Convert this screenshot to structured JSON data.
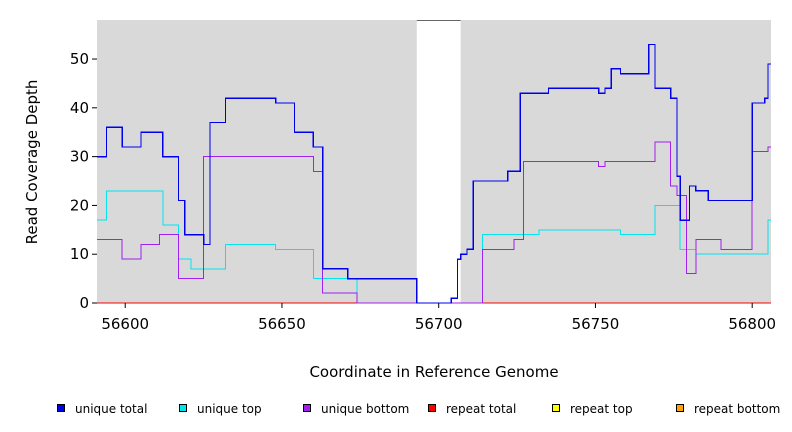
{
  "chart_data": {
    "type": "line",
    "step": true,
    "title": "",
    "xlabel": "Coordinate in Reference Genome",
    "ylabel": "Read Coverage Depth",
    "xlim": [
      56591,
      56806
    ],
    "ylim": [
      0,
      58
    ],
    "x_ticks": [
      56600,
      56650,
      56700,
      56750,
      56800
    ],
    "y_ticks": [
      0,
      10,
      20,
      30,
      40,
      50
    ],
    "grid": false,
    "panel_background": "#d9d9d9",
    "gap_regions": [
      [
        56693,
        56707
      ]
    ],
    "legend_position": "bottom",
    "series": [
      {
        "name": "unique total",
        "color": "#0000ee",
        "x": [
          56591,
          56594,
          56599,
          56605,
          56612,
          56617,
          56619,
          56625,
          56627,
          56632,
          56648,
          56654,
          56660,
          56663,
          56665,
          56671,
          56674,
          56679,
          56685,
          56690,
          56693,
          56704,
          56706,
          56707,
          56709,
          56711,
          56714,
          56718,
          56722,
          56726,
          56729,
          56735,
          56742,
          56748,
          56750,
          56751,
          56753,
          56755,
          56758,
          56765,
          56767,
          56769,
          56774,
          56776,
          56777,
          56780,
          56782,
          56786,
          56790,
          56795,
          56800,
          56804,
          56805
        ],
        "y": [
          30,
          36,
          32,
          35,
          30,
          21,
          14,
          12,
          37,
          42,
          41,
          35,
          32,
          7,
          7,
          5,
          5,
          5,
          5,
          5,
          0,
          1,
          9,
          10,
          11,
          25,
          25,
          25,
          27,
          43,
          43,
          44,
          44,
          44,
          44,
          43,
          44,
          48,
          47,
          47,
          53,
          44,
          42,
          26,
          17,
          24,
          23,
          21,
          21,
          21,
          41,
          42,
          49
        ]
      },
      {
        "name": "unique top",
        "color": "#00e5ee",
        "x": [
          56591,
          56594,
          56599,
          56605,
          56612,
          56617,
          56621,
          56625,
          56632,
          56648,
          56660,
          56665,
          56674,
          56693,
          56706,
          56714,
          56732,
          56744,
          56758,
          56769,
          56777,
          56782,
          56786,
          56800,
          56805
        ],
        "y": [
          17,
          23,
          23,
          23,
          16,
          9,
          7,
          7,
          12,
          11,
          5,
          5,
          0,
          0,
          0,
          14,
          15,
          15,
          14,
          20,
          11,
          10,
          10,
          10,
          17
        ]
      },
      {
        "name": "unique bottom",
        "color": "#a020f0",
        "x": [
          56591,
          56594,
          56599,
          56605,
          56611,
          56614,
          56617,
          56625,
          56648,
          56660,
          56663,
          56665,
          56674,
          56693,
          56707,
          56714,
          56724,
          56727,
          56750,
          56751,
          56753,
          56769,
          56774,
          56776,
          56779,
          56782,
          56790,
          56795,
          56800,
          56805
        ],
        "y": [
          13,
          13,
          9,
          12,
          14,
          14,
          5,
          30,
          30,
          27,
          2,
          2,
          0,
          0,
          0,
          11,
          13,
          29,
          29,
          28,
          29,
          33,
          24,
          22,
          6,
          13,
          11,
          11,
          31,
          32
        ]
      },
      {
        "name": "repeat total",
        "color": "#ff0000",
        "x": [
          56591,
          56806
        ],
        "y": [
          0,
          0
        ]
      },
      {
        "name": "repeat top",
        "color": "#ffff00",
        "x": [
          56591,
          56806
        ],
        "y": [
          0,
          0
        ]
      },
      {
        "name": "repeat bottom",
        "color": "#ffa500",
        "x": [
          56591,
          56806
        ],
        "y": [
          0,
          0
        ]
      }
    ]
  }
}
